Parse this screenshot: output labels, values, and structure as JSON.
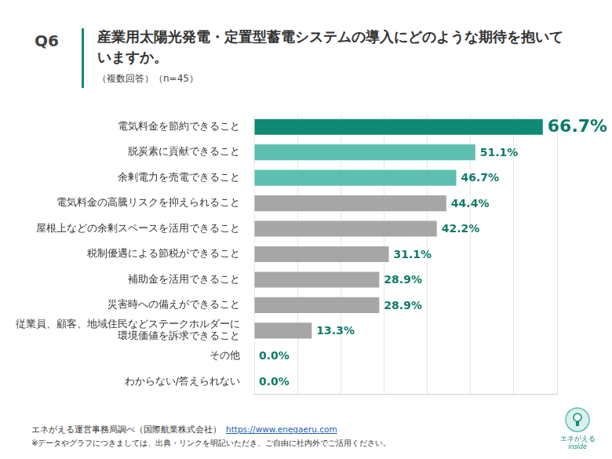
{
  "question_number": "Q6",
  "chart_data": {
    "type": "bar",
    "title": "産業用太陽光発電・定置型蓄電システムの導入にどのような期待を抱いていますか。",
    "subtitle": "（複数回答）（n=45）",
    "orientation": "horizontal",
    "categories": [
      "電気料金を節約できること",
      "脱炭素に貢献できること",
      "余剰電力を売電できること",
      "電気料金の高騰リスクを抑えられること",
      "屋根上などの余剰スペースを活用できること",
      "税制優遇による節税ができること",
      "補助金を活用できること",
      "災害時への備えができること",
      "従業員、顧客、地域住民などステークホルダーに\n環境価値を訴求できること",
      "その他",
      "わからない/答えられない"
    ],
    "values": [
      66.7,
      51.1,
      46.7,
      44.4,
      42.2,
      31.1,
      28.9,
      28.9,
      13.3,
      0.0,
      0.0
    ],
    "value_labels": [
      "66.7%",
      "51.1%",
      "46.7%",
      "44.4%",
      "42.2%",
      "31.1%",
      "28.9%",
      "28.9%",
      "13.3%",
      "0.0%",
      "0.0%"
    ],
    "colors": [
      "#0e8a75",
      "#5dbfb0",
      "#5dbfb0",
      "#a6a6a6",
      "#a6a6a6",
      "#a6a6a6",
      "#a6a6a6",
      "#a6a6a6",
      "#a6a6a6",
      "#a6a6a6",
      "#a6a6a6"
    ],
    "xlim": [
      0,
      70
    ],
    "xticks": [
      0,
      10,
      20,
      30,
      40,
      50,
      60,
      70
    ],
    "grid": true,
    "data_labels": true,
    "tick_labels": "y"
  },
  "source": "エネがえる運営事務局調べ（国際航業株式会社）",
  "url": "https://www.enegaeru.com",
  "note": "※データやグラフにつきましては、出典・リンクを明記いただき、ご自由に社内外でご活用ください。",
  "logo": {
    "name": "エネがえる",
    "tagline": "inside"
  }
}
